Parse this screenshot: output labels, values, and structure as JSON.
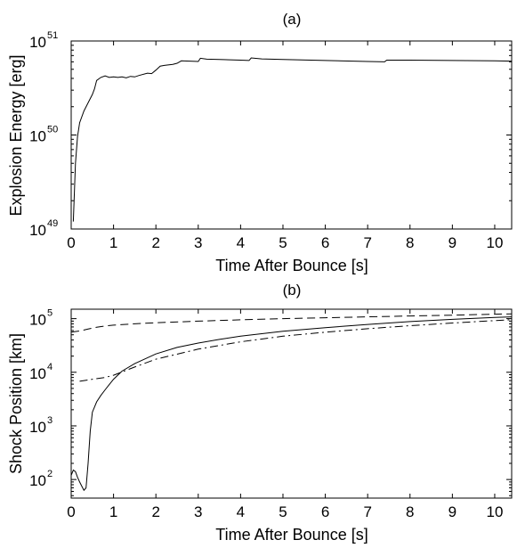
{
  "chart_data": [
    {
      "type": "line",
      "title": "(a)",
      "xlabel": "Time After Bounce [s]",
      "ylabel": "Explosion Energy [erg]",
      "xlim": [
        0,
        10.4
      ],
      "ylim": [
        1e+49,
        1e+51
      ],
      "yscale": "log",
      "xticks": [
        0,
        1,
        2,
        3,
        4,
        5,
        6,
        7,
        8,
        9,
        10
      ],
      "yticks": [
        {
          "value": 1e+49,
          "base": "10",
          "exp": "49"
        },
        {
          "value": 1e+50,
          "base": "10",
          "exp": "50"
        },
        {
          "value": 1e+51,
          "base": "10",
          "exp": "51"
        }
      ],
      "grid": false,
      "series": [
        {
          "style": "solid",
          "x": [
            0.05,
            0.1,
            0.15,
            0.2,
            0.3,
            0.4,
            0.5,
            0.55,
            0.6,
            0.7,
            0.8,
            0.9,
            1.0,
            1.1,
            1.2,
            1.3,
            1.4,
            1.5,
            1.6,
            1.8,
            1.9,
            2.0,
            2.1,
            2.2,
            2.4,
            2.5,
            2.6,
            2.8,
            3.0,
            3.05,
            3.2,
            3.5,
            4.0,
            4.2,
            4.25,
            4.5,
            5.0,
            6.0,
            7.0,
            7.4,
            7.45,
            8.0,
            9.0,
            10.0,
            10.4
          ],
          "y": [
            1.2e+49,
            5e+49,
            9.6e+49,
            1.35e+50,
            1.8e+50,
            2.2e+50,
            2.7e+50,
            3.1e+50,
            3.8e+50,
            4.1e+50,
            4.25e+50,
            4.1e+50,
            4.15e+50,
            4.1e+50,
            4.15e+50,
            4.05e+50,
            4.2e+50,
            4.15e+50,
            4.3e+50,
            4.55e+50,
            4.5e+50,
            4.9e+50,
            5.4e+50,
            5.5e+50,
            5.65e+50,
            5.8e+50,
            6.15e+50,
            6.1e+50,
            6.05e+50,
            6.55e+50,
            6.4e+50,
            6.35e+50,
            6.25e+50,
            6.2e+50,
            6.6e+50,
            6.45e+50,
            6.35e+50,
            6.2e+50,
            6.05e+50,
            6e+50,
            6.25e+50,
            6.25e+50,
            6.2e+50,
            6.15e+50,
            6.1e+50
          ]
        }
      ]
    },
    {
      "type": "line",
      "title": "(b)",
      "xlabel": "Time After Bounce [s]",
      "ylabel": "Shock Position [km]",
      "xlim": [
        0,
        10.4
      ],
      "ylim": [
        45,
        150000
      ],
      "yscale": "log",
      "xticks": [
        0,
        1,
        2,
        3,
        4,
        5,
        6,
        7,
        8,
        9,
        10
      ],
      "yticks": [
        {
          "value": 100,
          "base": "10",
          "exp": "2"
        },
        {
          "value": 1000,
          "base": "10",
          "exp": "3"
        },
        {
          "value": 10000,
          "base": "10",
          "exp": "4"
        },
        {
          "value": 100000,
          "base": "10",
          "exp": "5"
        }
      ],
      "grid": false,
      "series": [
        {
          "style": "solid",
          "x": [
            0.0,
            0.05,
            0.1,
            0.15,
            0.2,
            0.25,
            0.3,
            0.35,
            0.4,
            0.45,
            0.5,
            0.6,
            0.7,
            0.8,
            0.9,
            1.0,
            1.2,
            1.5,
            2.0,
            2.5,
            3.0,
            3.5,
            4.0,
            5.0,
            6.0,
            7.0,
            8.0,
            9.0,
            10.0,
            10.4
          ],
          "y": [
            120,
            150,
            140,
            110,
            90,
            75,
            63,
            70,
            200,
            800,
            1800,
            2800,
            3700,
            4700,
            5900,
            7400,
            10500,
            14500,
            22000,
            29000,
            35000,
            41000,
            47000,
            58000,
            68000,
            78000,
            88000,
            97000,
            105000,
            108000
          ]
        },
        {
          "style": "dashed",
          "x": [
            0.0,
            0.2,
            0.4,
            0.6,
            0.8,
            1.0,
            1.5,
            2.0,
            3.0,
            4.0,
            5.0,
            6.0,
            7.0,
            8.0,
            9.0,
            10.0,
            10.4
          ],
          "y": [
            56000,
            59000,
            64000,
            69000,
            73000,
            75500,
            80000,
            84000,
            90000,
            95000,
            100000,
            104000,
            108000,
            112000,
            116000,
            121000,
            123000
          ]
        },
        {
          "style": "dashdot",
          "x": [
            0.2,
            0.5,
            0.8,
            1.0,
            1.5,
            2.0,
            3.0,
            4.0,
            5.0,
            6.0,
            7.0,
            8.0,
            9.0,
            10.0,
            10.4
          ],
          "y": [
            6800,
            7400,
            8000,
            8800,
            12500,
            17500,
            27000,
            37000,
            47000,
            56000,
            65000,
            74000,
            83000,
            92000,
            96000
          ]
        }
      ]
    }
  ]
}
